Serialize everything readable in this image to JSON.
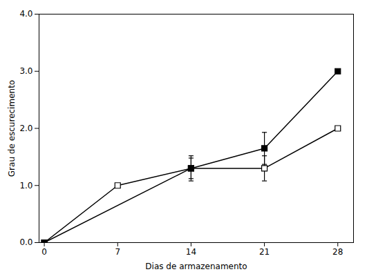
{
  "chart_data": {
    "type": "line",
    "xlabel": "Dias de armazenamento",
    "ylabel": "Grau de escurecimento",
    "xlim": [
      -0.5,
      29.5
    ],
    "ylim": [
      0,
      4.0
    ],
    "xticks": [
      0,
      7,
      14,
      21,
      28
    ],
    "yticks": [
      0,
      1,
      2,
      3,
      4
    ],
    "grid": false,
    "series": [
      {
        "color": "#000000",
        "marker": "open_square",
        "line_style": "solid",
        "x": [
          0,
          7,
          14,
          21,
          28
        ],
        "values": [
          0.0,
          1.0,
          1.3,
          1.3,
          2.0
        ],
        "yerr": [
          0.0,
          0.0,
          0.18,
          0.22,
          0.0
        ]
      },
      {
        "color": "#000000",
        "marker": "square",
        "line_style": "solid",
        "x": [
          0,
          14,
          21,
          28
        ],
        "values": [
          0.0,
          1.3,
          1.65,
          3.0
        ],
        "yerr": [
          0.0,
          0.22,
          0.28,
          0.0
        ]
      }
    ]
  }
}
